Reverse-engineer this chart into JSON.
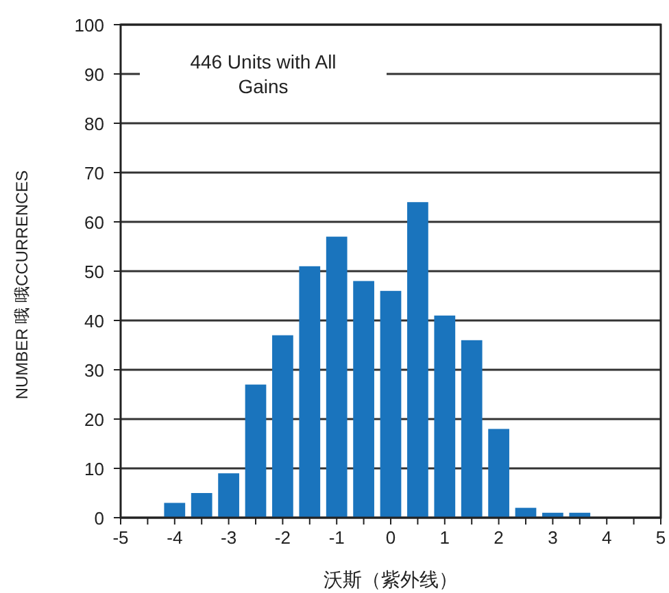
{
  "chart_data": {
    "type": "bar",
    "xlabel": "沃斯（紫外线）",
    "ylabel": "NUMBER 哦 哦CCURRENCES",
    "annotations": [
      "446 Units with All Gains"
    ],
    "x": [
      -4,
      -3.5,
      -3,
      -2.5,
      -2,
      -1.5,
      -1,
      -0.5,
      0,
      0.5,
      1,
      1.5,
      2,
      2.5,
      3,
      3.5
    ],
    "series": [
      {
        "color": "#1a74bd",
        "values": [
          3,
          5,
          9,
          27,
          37,
          51,
          57,
          48,
          46,
          64,
          41,
          36,
          18,
          2,
          1,
          1
        ]
      }
    ],
    "xlim": [
      -5,
      5
    ],
    "xticks": [
      -5,
      {
        "value": -4.5,
        "label": null
      },
      -4,
      {
        "value": -3.5,
        "label": null
      },
      -3,
      {
        "value": -2.5,
        "label": null
      },
      -2,
      {
        "value": -1.5,
        "label": null
      },
      -1,
      {
        "value": -0.5,
        "label": null
      },
      0,
      {
        "value": 0.5,
        "label": null
      },
      1,
      {
        "value": 1.5,
        "label": null
      },
      2,
      {
        "value": 2.5,
        "label": null
      },
      3,
      {
        "value": 3.5,
        "label": null
      },
      4,
      {
        "value": 4.5,
        "label": null
      },
      5
    ],
    "ylim": [
      0,
      100
    ],
    "yticks": [
      0,
      10,
      20,
      30,
      40,
      50,
      60,
      70,
      80,
      90,
      100
    ],
    "grid": "y"
  }
}
